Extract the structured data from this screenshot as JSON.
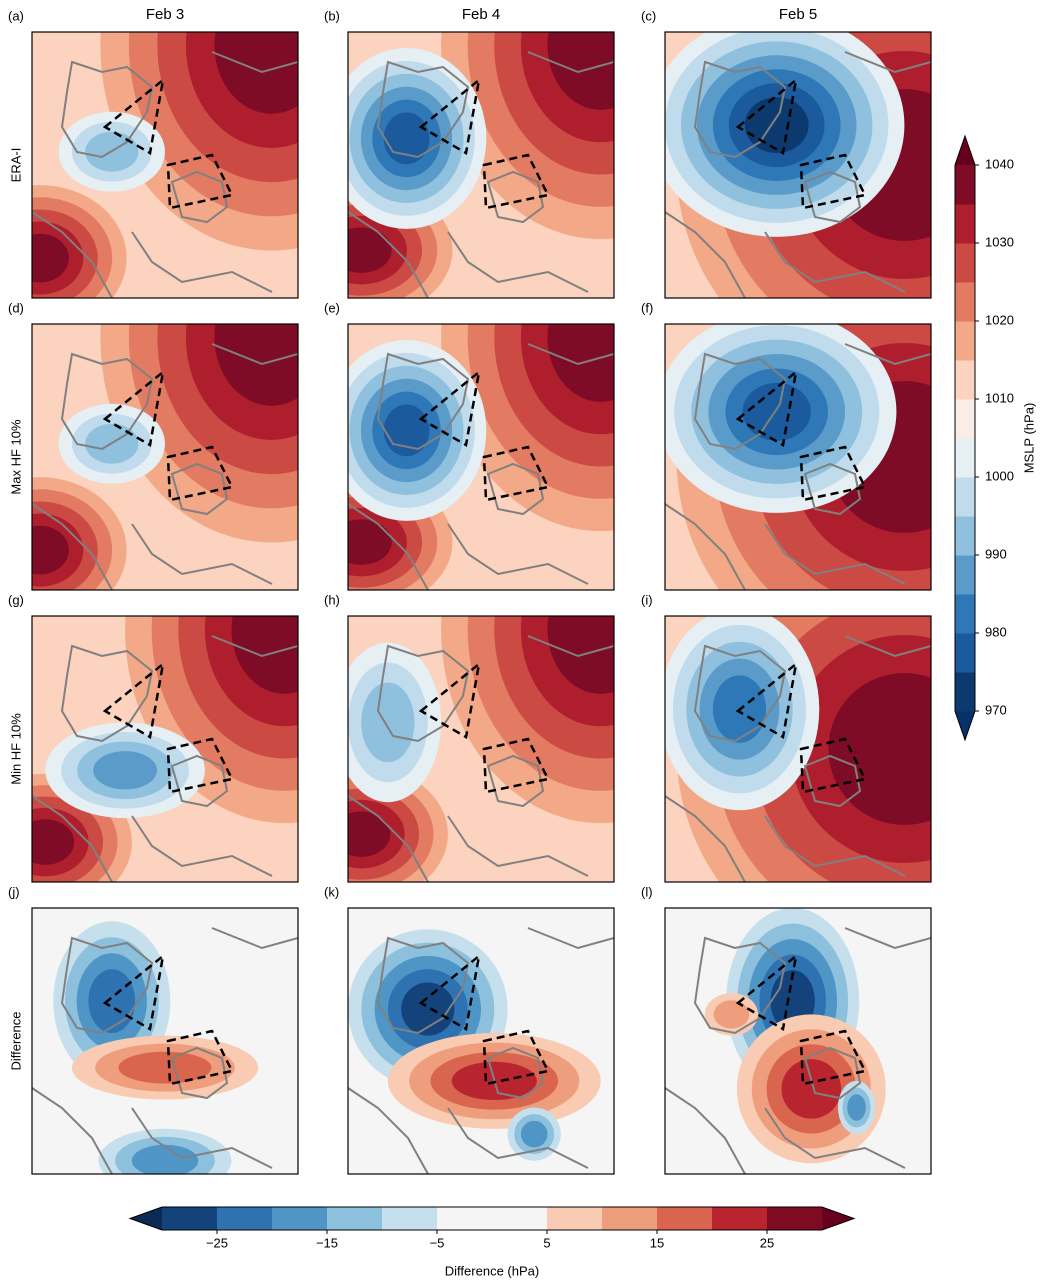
{
  "column_titles": [
    "Feb 3",
    "Feb 4",
    "Feb 5"
  ],
  "row_labels": [
    "ERA-I",
    "Max HF 10%",
    "Min HF 10%",
    "Difference"
  ],
  "panel_labels": [
    "(a)",
    "(b)",
    "(c)",
    "(d)",
    "(e)",
    "(f)",
    "(g)",
    "(h)",
    "(i)",
    "(j)",
    "(k)",
    "(l)"
  ],
  "colorbars": [
    {
      "label": "MSLP (hPa)",
      "orientation": "vertical",
      "lim": [
        970,
        1040
      ],
      "ticks": [
        970,
        980,
        990,
        1000,
        1010,
        1020,
        1030,
        1040
      ],
      "levels": [
        970,
        975,
        980,
        985,
        990,
        995,
        1000,
        1005,
        1010,
        1015,
        1020,
        1025,
        1030,
        1035,
        1040
      ],
      "colors": [
        "#0d3a6e",
        "#1b5a9c",
        "#2e78b7",
        "#5a9bc9",
        "#8fc0dd",
        "#c0dcec",
        "#e6eff4",
        "#f9ede6",
        "#fbd3bf",
        "#f3a887",
        "#e27b62",
        "#cb4a44",
        "#af1e2d",
        "#7f0c26"
      ],
      "extend_colors": [
        "#08306b",
        "#67001f"
      ]
    },
    {
      "label": "Difference (hPa)",
      "orientation": "horizontal",
      "lim": [
        -30,
        30
      ],
      "ticks": [
        {
          "value": -25,
          "label": "−25"
        },
        {
          "value": -15,
          "label": "−15"
        },
        {
          "value": -5,
          "label": "−5"
        },
        5,
        15,
        25
      ],
      "levels": [
        -30,
        -25,
        -20,
        -15,
        -10,
        -5,
        5,
        10,
        15,
        20,
        25,
        30
      ],
      "colors": [
        "#14427a",
        "#2f72b2",
        "#4f96c7",
        "#8dc0dd",
        "#c6dfed",
        "#f5f5f5",
        "#f9cbb3",
        "#ee9e7d",
        "#d9654f",
        "#b8252f",
        "#7d0c23"
      ],
      "extend_colors": [
        "#0b2a55",
        "#67001f"
      ]
    }
  ]
}
